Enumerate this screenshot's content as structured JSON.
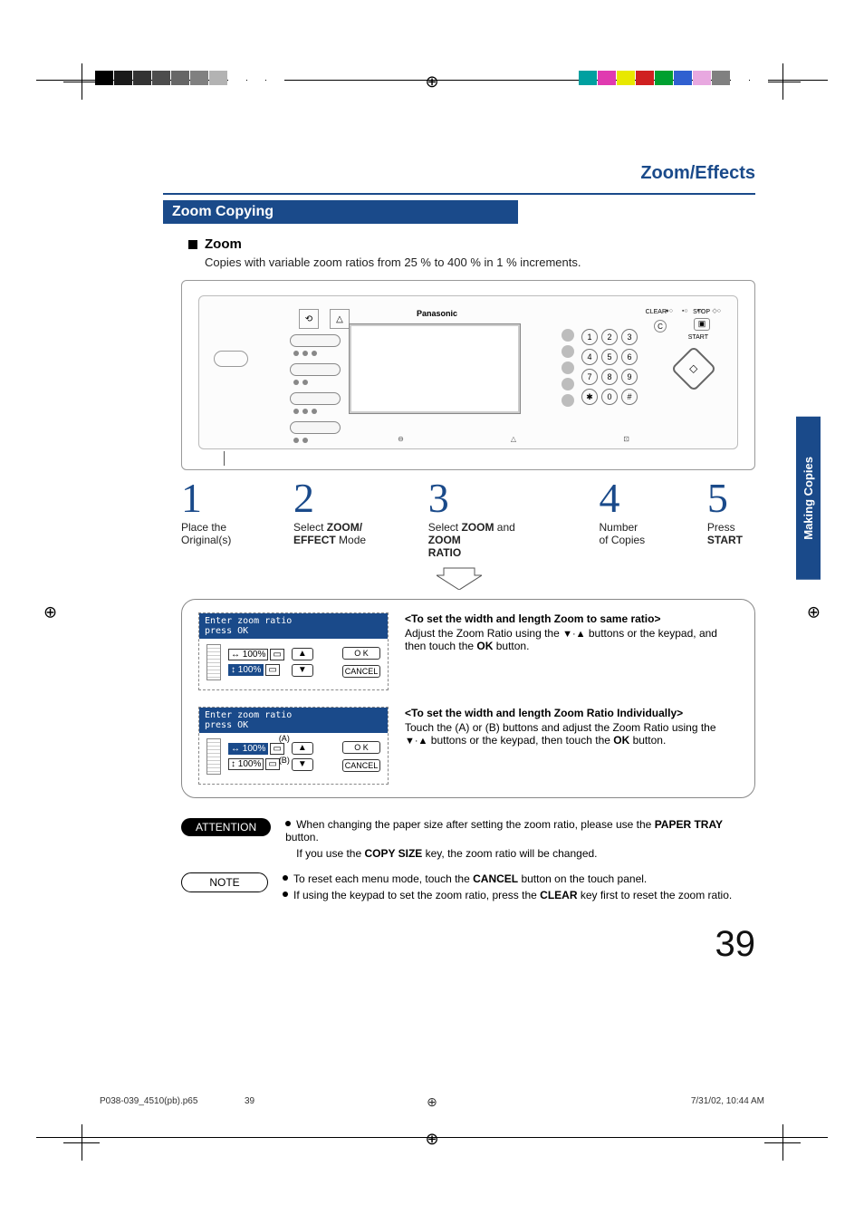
{
  "page": {
    "title_right": "Zoom/Effects",
    "band": "Zoom Copying",
    "sub": "Zoom",
    "desc": "Copies with variable zoom ratios from 25 % to 400 % in 1 % increments.",
    "number": "39",
    "side_tab": "Making Copies",
    "footer_file": "P038-039_4510(pb).p65",
    "footer_page": "39",
    "footer_time": "7/31/02, 10:44 AM"
  },
  "reg": {
    "grays": [
      "#000000",
      "#1a1a1a",
      "#333333",
      "#4d4d4d",
      "#666666",
      "#808080",
      "#b3b3b3",
      "#ffffff",
      "#ffffff",
      "#ffffff"
    ],
    "colors": [
      "#00a0a0",
      "#e03ab0",
      "#e8e800",
      "#d02020",
      "#00a030",
      "#3060d0",
      "#e8a8e0",
      "#808080",
      "#ffffff",
      "#ffffff"
    ]
  },
  "device": {
    "brand": "Panasonic",
    "top_labels": [
      "",
      "",
      "",
      "",
      "CLEAR",
      "STOP"
    ],
    "start_label": "START",
    "clear_glyph": "C",
    "start_glyph": "◇",
    "bottom_labels": [
      "",
      "",
      ""
    ],
    "keypad": [
      "1",
      "2",
      "3",
      "4",
      "5",
      "6",
      "7",
      "8",
      "9",
      "✱",
      "0",
      "#"
    ]
  },
  "steps": [
    {
      "num": "1",
      "line1": "Place the",
      "line2": "Original(s)"
    },
    {
      "num": "2",
      "line1": "Select ",
      "bold1": "ZOOM/",
      "line2_bold": "EFFECT",
      "line2_rest": " Mode"
    },
    {
      "num": "3",
      "line1": "Select ",
      "bold1": "ZOOM",
      "mid": " and ",
      "bold2": "ZOOM",
      "line2_bold": "RATIO",
      "line2_rest": ""
    },
    {
      "num": "4",
      "line1": "Number",
      "line2": "of Copies"
    },
    {
      "num": "5",
      "line1": "Press",
      "line2_bold": "START",
      "line2_rest": ""
    }
  ],
  "lcd": {
    "top": "Enter zoom ratio\npress OK",
    "ratio_h": "↔ 100%",
    "ratio_v": "↕ 100%",
    "ok": "O K",
    "cancel": "CANCEL",
    "up": "▲",
    "down": "▼",
    "labelA": "(A)",
    "labelB": "(B)"
  },
  "detail1": {
    "hd": "<To set the width and length Zoom to same ratio>",
    "body_pre": "Adjust the Zoom Ratio using the ",
    "tri": "▼·▲",
    "body_mid": " buttons or the keypad, and then touch the ",
    "ok": "OK",
    "body_post": " button."
  },
  "detail2": {
    "hd": "<To set the width and length Zoom Ratio Individually>",
    "body_pre": "Touch the (A) or (B) buttons and adjust the Zoom Ratio using the ",
    "tri": "▼·▲",
    "body_mid": " buttons or the keypad, then touch the ",
    "ok": "OK",
    "body_post": " button."
  },
  "attention": {
    "label": "ATTENTION",
    "l1a": "When changing the paper size after setting the zoom ratio, please use the ",
    "l1b": "PAPER TRAY",
    "l1c": " button.",
    "l2a": "If you use the ",
    "l2b": "COPY SIZE",
    "l2c": " key, the zoom ratio will be changed."
  },
  "note": {
    "label": "NOTE",
    "l1a": "To reset each menu mode, touch the ",
    "l1b": "CANCEL",
    "l1c": " button on the touch panel.",
    "l2a": "If using the keypad to set the zoom ratio, press the ",
    "l2b": "CLEAR",
    "l2c": " key first to reset the zoom ratio."
  }
}
